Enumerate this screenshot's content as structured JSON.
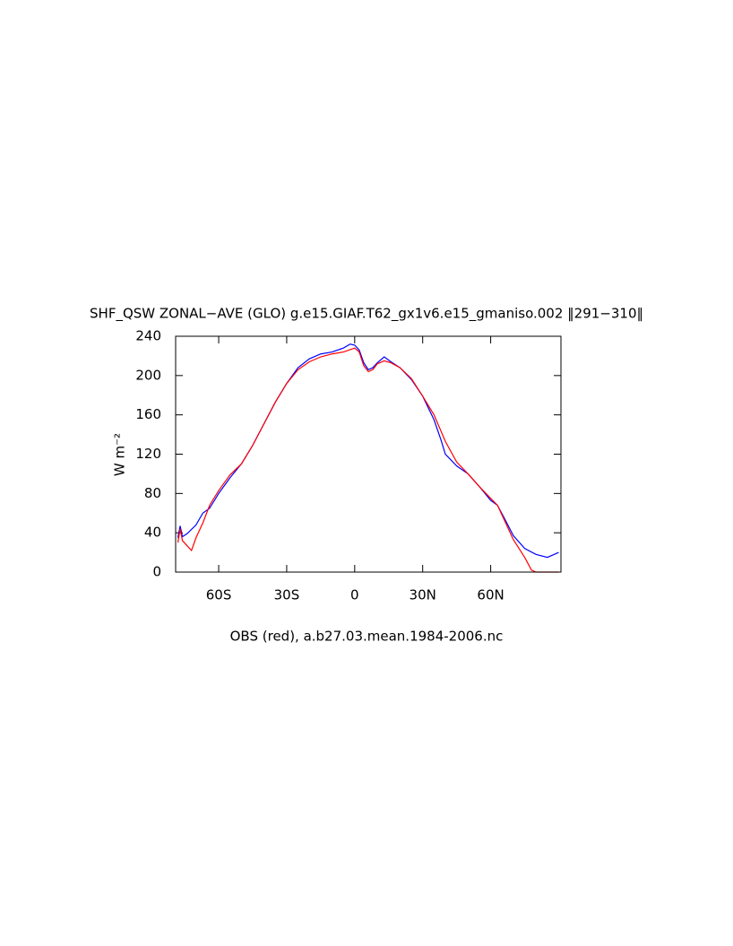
{
  "chart_data": {
    "type": "line",
    "title": "SHF_QSW ZONAL−AVE (GLO) g.e15.GIAF.T62_gx1v6.e15_gmaniso.002 ‖291−310‖",
    "ylabel": "W m⁻²",
    "xlabel": "OBS (red), a.b27.03.mean.1984-2006.nc",
    "xlim": [
      -79,
      91
    ],
    "ylim": [
      0,
      240
    ],
    "xticks": [
      {
        "value": -60,
        "label": "60S"
      },
      {
        "value": -30,
        "label": "30S"
      },
      0,
      {
        "value": 30,
        "label": "30N"
      },
      {
        "value": 60,
        "label": "60N"
      }
    ],
    "yticks": [
      0,
      40,
      80,
      120,
      160,
      200,
      240
    ],
    "series": [
      {
        "color": "#0000ff",
        "x": [
          -78,
          -77,
          -76,
          -74,
          -70,
          -67,
          -64,
          -60,
          -55,
          -50,
          -45,
          -40,
          -35,
          -30,
          -25,
          -20,
          -15,
          -10,
          -5,
          -2,
          0,
          2,
          4,
          6,
          8,
          10,
          13,
          16,
          20,
          25,
          30,
          35,
          38,
          40,
          45,
          50,
          55,
          60,
          63,
          66,
          70,
          75,
          80,
          85,
          88,
          90
        ],
        "values": [
          35,
          47,
          36,
          39,
          48,
          60,
          65,
          80,
          96,
          110,
          129,
          151,
          173,
          192,
          208,
          217,
          222,
          224,
          228,
          232,
          231,
          226,
          213,
          206,
          208,
          213,
          219,
          214,
          208,
          196,
          179,
          155,
          135,
          120,
          108,
          100,
          87,
          73,
          68,
          55,
          37,
          24,
          18,
          15,
          18,
          20
        ]
      },
      {
        "color": "#ff0000",
        "x": [
          -78,
          -77,
          -76,
          -74,
          -72,
          -70,
          -67,
          -64,
          -60,
          -55,
          -50,
          -45,
          -40,
          -35,
          -30,
          -25,
          -20,
          -15,
          -10,
          -5,
          0,
          2,
          4,
          6,
          8,
          10,
          13,
          16,
          20,
          25,
          30,
          35,
          40,
          45,
          50,
          55,
          60,
          63,
          66,
          70,
          75,
          78,
          80,
          85,
          90
        ],
        "values": [
          30,
          44,
          32,
          27,
          22,
          35,
          50,
          68,
          83,
          99,
          110,
          129,
          151,
          173,
          192,
          206,
          214,
          219,
          222,
          224,
          228,
          224,
          210,
          204,
          206,
          212,
          215,
          213,
          208,
          197,
          179,
          160,
          133,
          112,
          100,
          87,
          75,
          68,
          53,
          33,
          15,
          2,
          0,
          0,
          0
        ]
      }
    ]
  }
}
